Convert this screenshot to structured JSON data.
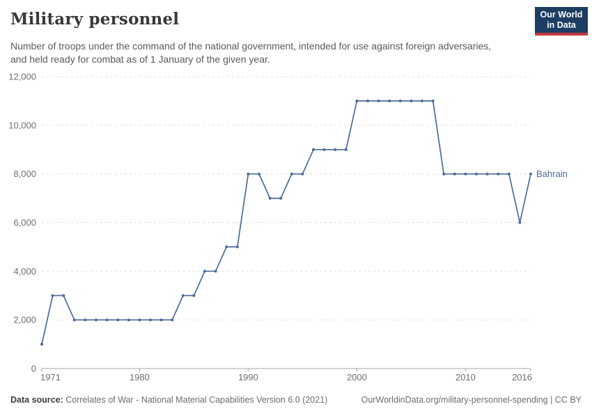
{
  "header": {
    "title": "Military personnel",
    "subtitle": "Number of troops under the command of the national government, intended for use against foreign adversaries, and held ready for combat as of 1 January of the given year.",
    "logo_line1": "Our World",
    "logo_line2": "in Data"
  },
  "colors": {
    "line": "#4C6A9C",
    "entity_label": "#4C6A9C",
    "gridline": "#e3e3e3",
    "axis": "#a5a5a5",
    "logo_bg": "#1d3d63",
    "logo_stripe": "#c63a3f"
  },
  "chart_data": {
    "type": "line",
    "title": "Military personnel",
    "entity": "Bahrain",
    "x": [
      1971,
      1972,
      1973,
      1974,
      1975,
      1976,
      1977,
      1978,
      1979,
      1980,
      1981,
      1982,
      1983,
      1984,
      1985,
      1986,
      1987,
      1988,
      1989,
      1990,
      1991,
      1992,
      1993,
      1994,
      1995,
      1996,
      1997,
      1998,
      1999,
      2000,
      2001,
      2002,
      2003,
      2004,
      2005,
      2006,
      2007,
      2008,
      2009,
      2010,
      2011,
      2012,
      2013,
      2014,
      2015,
      2016
    ],
    "values": [
      1000,
      3000,
      3000,
      2000,
      2000,
      2000,
      2000,
      2000,
      2000,
      2000,
      2000,
      2000,
      2000,
      3000,
      3000,
      4000,
      4000,
      5000,
      5000,
      8000,
      8000,
      7000,
      7000,
      8000,
      8000,
      9000,
      9000,
      9000,
      9000,
      11000,
      11000,
      11000,
      11000,
      11000,
      11000,
      11000,
      11000,
      8000,
      8000,
      8000,
      8000,
      8000,
      8000,
      8000,
      6000,
      8000
    ],
    "ylim": [
      0,
      12000
    ],
    "xlim": [
      1971,
      2016
    ],
    "yticks": [
      0,
      2000,
      4000,
      6000,
      8000,
      10000,
      12000
    ],
    "ytick_labels": [
      "0",
      "2,000",
      "4,000",
      "6,000",
      "8,000",
      "10,000",
      "12,000"
    ],
    "xticks": [
      1971,
      1980,
      1990,
      2000,
      2010,
      2016
    ],
    "xtick_labels": [
      "1971",
      "1980",
      "1990",
      "2000",
      "2010",
      "2016"
    ],
    "grid": true,
    "legend_position": "right-of-line"
  },
  "footer": {
    "data_source_label": "Data source:",
    "data_source_value": "Correlates of War - National Material Capabilities Version 6.0 (2021)",
    "credit": "OurWorldinData.org/military-personnel-spending | CC BY"
  }
}
